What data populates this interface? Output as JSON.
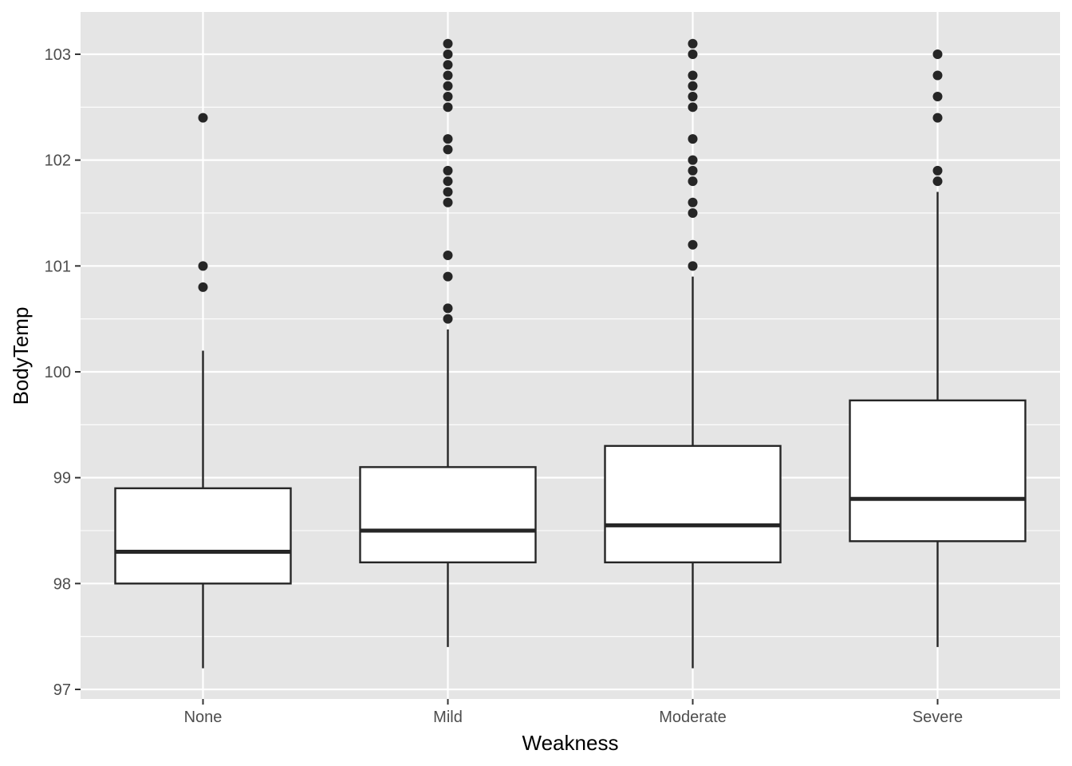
{
  "chart_data": {
    "type": "boxplot",
    "title": "",
    "xlabel": "Weakness",
    "ylabel": "BodyTemp",
    "categories": [
      "None",
      "Mild",
      "Moderate",
      "Severe"
    ],
    "ylim": [
      96.93,
      103.4
    ],
    "yticks": [
      97,
      98,
      99,
      100,
      101,
      102,
      103
    ],
    "grid": true,
    "legend": "none",
    "colors": {
      "panel_background": "#e5e5e5",
      "grid": "#ffffff",
      "box_fill": "#ffffff",
      "box_line": "#262626",
      "outlier": "#262626"
    },
    "boxes": [
      {
        "category": "None",
        "whisker_low": 97.2,
        "q1": 98.0,
        "median": 98.3,
        "q3": 98.9,
        "whisker_high": 100.2,
        "outliers": [
          100.8,
          101.0,
          102.4
        ]
      },
      {
        "category": "Mild",
        "whisker_low": 97.4,
        "q1": 98.2,
        "median": 98.5,
        "q3": 99.1,
        "whisker_high": 100.4,
        "outliers": [
          100.5,
          100.6,
          100.9,
          101.1,
          101.6,
          101.7,
          101.8,
          101.9,
          102.1,
          102.2,
          102.5,
          102.6,
          102.7,
          102.8,
          102.9,
          103.0,
          103.1
        ]
      },
      {
        "category": "Moderate",
        "whisker_low": 97.2,
        "q1": 98.2,
        "median": 98.55,
        "q3": 99.3,
        "whisker_high": 100.9,
        "outliers": [
          101.0,
          101.2,
          101.5,
          101.6,
          101.8,
          101.9,
          102.0,
          102.2,
          102.5,
          102.6,
          102.7,
          102.8,
          103.0,
          103.1
        ]
      },
      {
        "category": "Severe",
        "whisker_low": 97.4,
        "q1": 98.4,
        "median": 98.8,
        "q3": 99.73,
        "whisker_high": 101.7,
        "outliers": [
          101.8,
          101.9,
          102.4,
          102.6,
          102.8,
          103.0
        ]
      }
    ]
  }
}
